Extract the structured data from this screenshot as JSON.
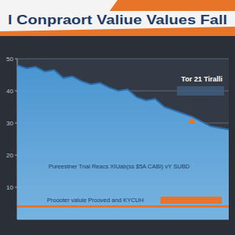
{
  "chart_data": {
    "type": "line",
    "title": "l Conpraort Valiue Values Fall",
    "annotations": [
      "Tor 21 Tiralli",
      "Pureestner Tnal Reacs XIUab(ss $5A CABI) vY SUBD",
      "Proooter valuie Prooved and KYCUH"
    ],
    "categories": [
      null,
      null,
      null,
      null,
      null,
      null,
      null,
      null,
      null,
      null,
      null,
      null,
      null,
      null,
      null,
      null,
      null,
      null,
      null,
      null,
      null,
      null,
      null,
      null
    ],
    "values": [
      48,
      47,
      47.5,
      46,
      46.5,
      44,
      44.5,
      43,
      42,
      42.5,
      41,
      40,
      40.5,
      38,
      37,
      37.5,
      35,
      34,
      33,
      32,
      30.5,
      29,
      28.5,
      28
    ],
    "color": "#4b9ad8",
    "ylim": [
      0,
      50
    ],
    "yticks": [
      10,
      20,
      30,
      40,
      50
    ],
    "grid": true,
    "tick_labels": "y"
  }
}
